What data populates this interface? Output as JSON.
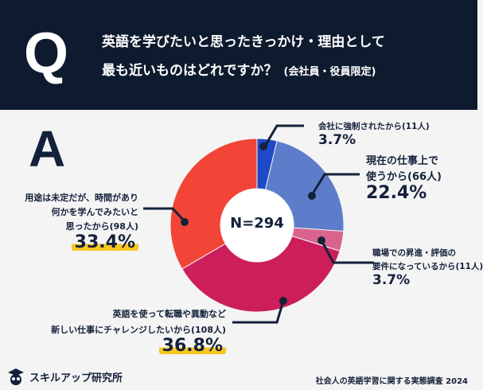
{
  "header": {
    "q_mark": "Q",
    "line1": "英語を学びたいと思ったきっかけ・理由として",
    "line2": "最も近いものはどれですか？",
    "note": "(会社員・役員限定)"
  },
  "answer_mark": "A",
  "chart_data": {
    "type": "pie",
    "title": "英語を学びたいと思ったきっかけ・理由として最も近いものはどれですか？",
    "total_label": "N=294",
    "total": 294,
    "slices": [
      {
        "label": "会社に強制されたから",
        "count": "(11人)",
        "value": 3.7,
        "pct": "3.7%",
        "color": "#1e49c8"
      },
      {
        "label": "現在の仕事上で使うから",
        "count": "(66人)",
        "value": 22.4,
        "pct": "22.4%",
        "color": "#5d7dcb"
      },
      {
        "label": "職場での昇進・評価の要件になっているから",
        "count": "(11人)",
        "value": 3.7,
        "pct": "3.7%",
        "color": "#d9638f"
      },
      {
        "label": "英語を使って転職や異動など新しい仕事にチャレンジしたいから",
        "count": "(108人)",
        "value": 36.8,
        "pct": "36.8%",
        "color": "#cc1e5b"
      },
      {
        "label": "用途は未定だが、時間があり何かを学んでみたいと思ったから",
        "count": "(98人)",
        "value": 33.4,
        "pct": "33.4%",
        "color": "#f24437"
      }
    ]
  },
  "labels": {
    "s0": [
      "会社に強制されたから(11人)"
    ],
    "s1": [
      "現在の仕事上で",
      "使うから(66人)"
    ],
    "s2": [
      "職場での昇進・評価の",
      "要件になっているから(11人)"
    ],
    "s3": [
      "英語を使って転職や異動など",
      "新しい仕事にチャレンジしたいから(108人)"
    ],
    "s4": [
      "用途は未定だが、時間があり",
      "何かを学んでみたいと",
      "思ったから(98人)"
    ]
  },
  "footer": {
    "logo": "スキルアップ研究所",
    "source": "社会人の英語学習に関する実態調査 2024"
  }
}
